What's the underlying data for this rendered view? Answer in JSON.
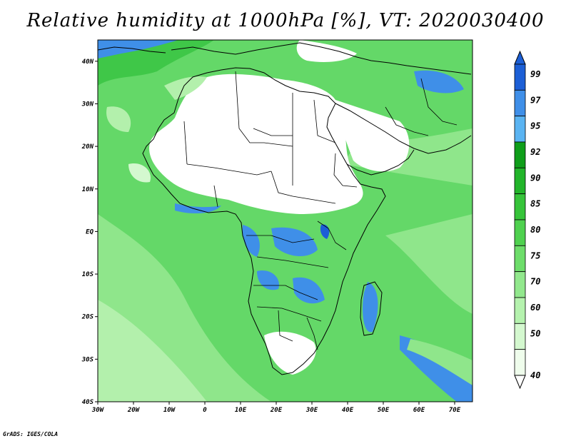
{
  "title": "Relative humidity at 1000hPa [%], VT: 2020030400",
  "credit": "GrADS: IGES/COLA",
  "map": {
    "lat_labels": [
      "40N",
      "30N",
      "20N",
      "10N",
      "EQ",
      "10S",
      "20S",
      "30S",
      "40S"
    ],
    "lat_values": [
      40,
      30,
      20,
      10,
      0,
      -10,
      -20,
      -30,
      -40
    ],
    "lon_labels": [
      "30W",
      "20W",
      "10W",
      "0",
      "10E",
      "20E",
      "30E",
      "40E",
      "50E",
      "60E",
      "70E"
    ],
    "lon_values": [
      -30,
      -20,
      -10,
      0,
      10,
      20,
      30,
      40,
      50,
      60,
      70
    ],
    "lon_range": [
      -30,
      75
    ],
    "lat_range": [
      -40,
      45
    ]
  },
  "legend": {
    "labels": [
      "99",
      "97",
      "95",
      "92",
      "90",
      "85",
      "80",
      "75",
      "70",
      "60",
      "50",
      "40"
    ],
    "colors": [
      "#1c5fd6",
      "#3f8fe8",
      "#5ab4f2",
      "#0f9e1a",
      "#22b52a",
      "#36c43a",
      "#4fd14f",
      "#6ddd6a",
      "#92e88d",
      "#b5f2ae",
      "#d4f8cf",
      "#effdec"
    ]
  },
  "colors": {
    "land_dry": "#ffffff",
    "ocean_base": "#64d868",
    "wet": "#3f8fe8"
  }
}
